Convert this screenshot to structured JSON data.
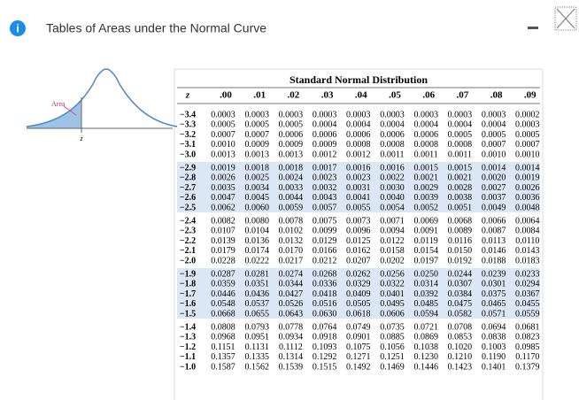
{
  "header": {
    "title": "Tables of Areas under the Normal Curve"
  },
  "figure": {
    "area_label": "Area",
    "z_label": "z"
  },
  "table": {
    "title": "Standard Normal Distribution",
    "columns": [
      "z",
      ".00",
      ".01",
      ".02",
      ".03",
      ".04",
      ".05",
      ".06",
      ".07",
      ".08",
      ".09"
    ],
    "rows": [
      [
        "−3.4",
        "0.0003",
        "0.0003",
        "0.0003",
        "0.0003",
        "0.0003",
        "0.0003",
        "0.0003",
        "0.0003",
        "0.0003",
        "0.0002"
      ],
      [
        "−3.3",
        "0.0005",
        "0.0005",
        "0.0005",
        "0.0004",
        "0.0004",
        "0.0004",
        "0.0004",
        "0.0004",
        "0.0004",
        "0.0003"
      ],
      [
        "−3.2",
        "0.0007",
        "0.0007",
        "0.0006",
        "0.0006",
        "0.0006",
        "0.0006",
        "0.0006",
        "0.0005",
        "0.0005",
        "0.0005"
      ],
      [
        "−3.1",
        "0.0010",
        "0.0009",
        "0.0009",
        "0.0009",
        "0.0008",
        "0.0008",
        "0.0008",
        "0.0008",
        "0.0007",
        "0.0007"
      ],
      [
        "−3.0",
        "0.0013",
        "0.0013",
        "0.0013",
        "0.0012",
        "0.0012",
        "0.0011",
        "0.0011",
        "0.0011",
        "0.0010",
        "0.0010"
      ],
      [
        "−2.9",
        "0.0019",
        "0.0018",
        "0.0018",
        "0.0017",
        "0.0016",
        "0.0016",
        "0.0015",
        "0.0015",
        "0.0014",
        "0.0014"
      ],
      [
        "−2.8",
        "0.0026",
        "0.0025",
        "0.0024",
        "0.0023",
        "0.0023",
        "0.0022",
        "0.0021",
        "0.0021",
        "0.0020",
        "0.0019"
      ],
      [
        "−2.7",
        "0.0035",
        "0.0034",
        "0.0033",
        "0.0032",
        "0.0031",
        "0.0030",
        "0.0029",
        "0.0028",
        "0.0027",
        "0.0026"
      ],
      [
        "−2.6",
        "0.0047",
        "0.0045",
        "0.0044",
        "0.0043",
        "0.0041",
        "0.0040",
        "0.0039",
        "0.0038",
        "0.0037",
        "0.0036"
      ],
      [
        "−2.5",
        "0.0062",
        "0.0060",
        "0.0059",
        "0.0057",
        "0.0055",
        "0.0054",
        "0.0052",
        "0.0051",
        "0.0049",
        "0.0048"
      ],
      [
        "−2.4",
        "0.0082",
        "0.0080",
        "0.0078",
        "0.0075",
        "0.0073",
        "0.0071",
        "0.0069",
        "0.0068",
        "0.0066",
        "0.0064"
      ],
      [
        "−2.3",
        "0.0107",
        "0.0104",
        "0.0102",
        "0.0099",
        "0.0096",
        "0.0094",
        "0.0091",
        "0.0089",
        "0.0087",
        "0.0084"
      ],
      [
        "−2.2",
        "0.0139",
        "0.0136",
        "0.0132",
        "0.0129",
        "0.0125",
        "0.0122",
        "0.0119",
        "0.0116",
        "0.0113",
        "0.0110"
      ],
      [
        "−2.1",
        "0.0179",
        "0.0174",
        "0.0170",
        "0.0166",
        "0.0162",
        "0.0158",
        "0.0154",
        "0.0150",
        "0.0146",
        "0.0143"
      ],
      [
        "−2.0",
        "0.0228",
        "0.0222",
        "0.0217",
        "0.0212",
        "0.0207",
        "0.0202",
        "0.0197",
        "0.0192",
        "0.0188",
        "0.0183"
      ],
      [
        "−1.9",
        "0.0287",
        "0.0281",
        "0.0274",
        "0.0268",
        "0.0262",
        "0.0256",
        "0.0250",
        "0.0244",
        "0.0239",
        "0.0233"
      ],
      [
        "−1.8",
        "0.0359",
        "0.0351",
        "0.0344",
        "0.0336",
        "0.0329",
        "0.0322",
        "0.0314",
        "0.0307",
        "0.0301",
        "0.0294"
      ],
      [
        "−1.7",
        "0.0446",
        "0.0436",
        "0.0427",
        "0.0418",
        "0.0409",
        "0.0401",
        "0.0392",
        "0.0384",
        "0.0375",
        "0.0367"
      ],
      [
        "−1.6",
        "0.0548",
        "0.0537",
        "0.0526",
        "0.0516",
        "0.0505",
        "0.0495",
        "0.0485",
        "0.0475",
        "0.0465",
        "0.0455"
      ],
      [
        "−1.5",
        "0.0668",
        "0.0655",
        "0.0643",
        "0.0630",
        "0.0618",
        "0.0606",
        "0.0594",
        "0.0582",
        "0.0571",
        "0.0559"
      ],
      [
        "−1.4",
        "0.0808",
        "0.0793",
        "0.0778",
        "0.0764",
        "0.0749",
        "0.0735",
        "0.0721",
        "0.0708",
        "0.0694",
        "0.0681"
      ],
      [
        "−1.3",
        "0.0968",
        "0.0951",
        "0.0934",
        "0.0918",
        "0.0901",
        "0.0885",
        "0.0869",
        "0.0853",
        "0.0838",
        "0.0823"
      ],
      [
        "−1.2",
        "0.1151",
        "0.1131",
        "0.1112",
        "0.1093",
        "0.1075",
        "0.1056",
        "0.1038",
        "0.1020",
        "0.1003",
        "0.0985"
      ],
      [
        "−1.1",
        "0.1357",
        "0.1335",
        "0.1314",
        "0.1292",
        "0.1271",
        "0.1251",
        "0.1230",
        "0.1210",
        "0.1190",
        "0.1170"
      ],
      [
        "−1.0",
        "0.1587",
        "0.1562",
        "0.1539",
        "0.1515",
        "0.1492",
        "0.1469",
        "0.1446",
        "0.1423",
        "0.1401",
        "0.1379"
      ]
    ]
  }
}
